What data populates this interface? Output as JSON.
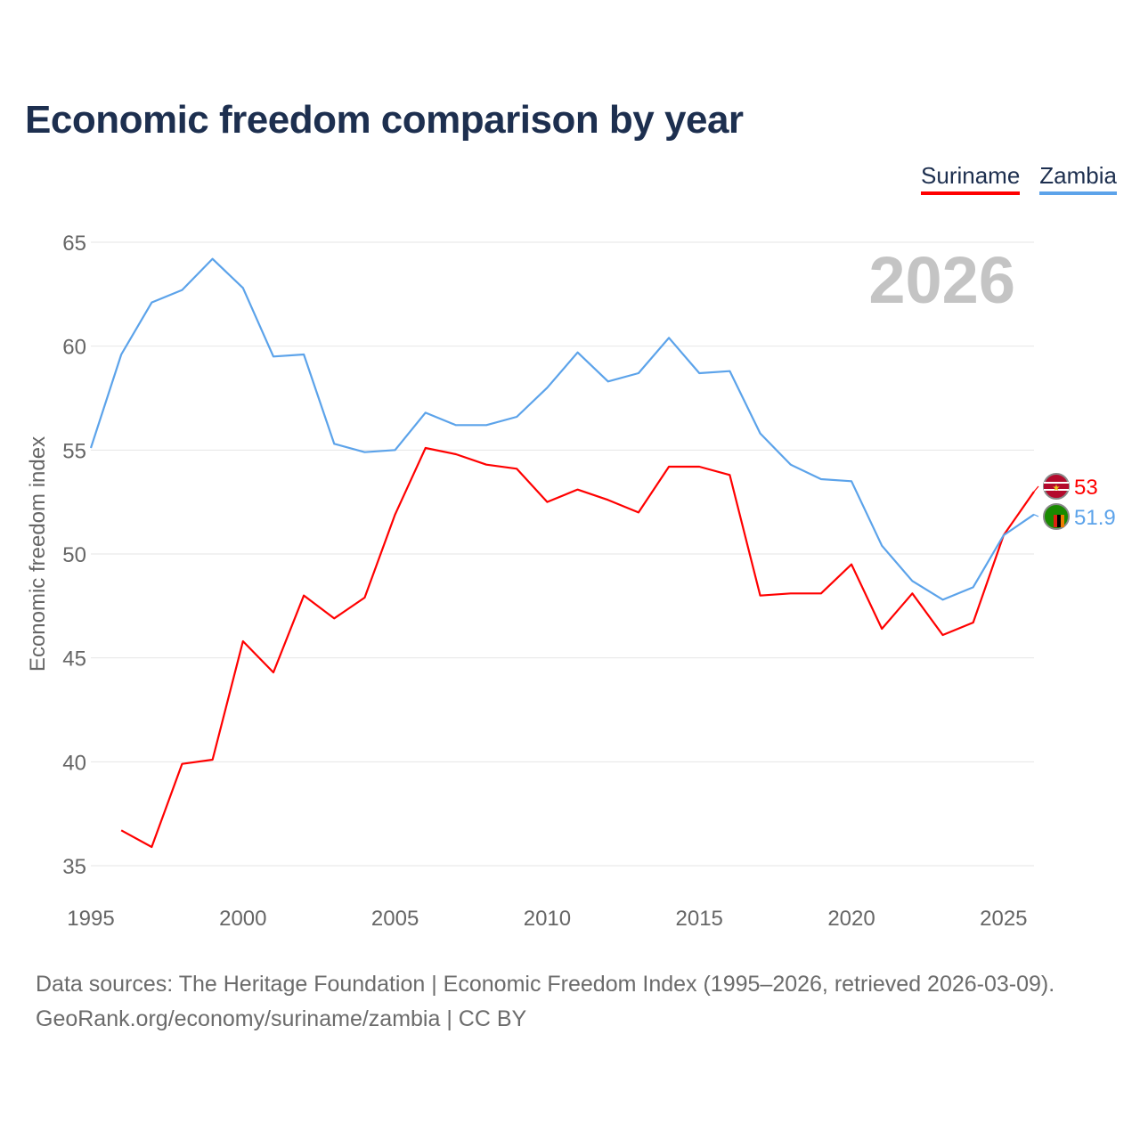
{
  "title": "Economic freedom comparison by year",
  "footer": {
    "line1": "Data sources: The Heritage Foundation | Economic Freedom Index (1995–2026, retrieved 2026-03-09).",
    "line2": "GeoRank.org/economy/suriname/zambia | CC BY"
  },
  "chart_data": {
    "type": "line",
    "title": "Economic freedom comparison by year",
    "xlabel": "",
    "ylabel": "Economic freedom index",
    "xlim": [
      1995,
      2026
    ],
    "ylim": [
      35,
      65
    ],
    "xticks": [
      "1995",
      "2000",
      "2005",
      "2010",
      "2015",
      "2020",
      "2025"
    ],
    "yticks": [
      "35",
      "40",
      "45",
      "50",
      "55",
      "60",
      "65"
    ],
    "grid": true,
    "legend_position": "top-right",
    "annotation": "2026",
    "series": [
      {
        "name": "Suriname",
        "color": "#ff0000",
        "end_label": "53",
        "x": [
          1996,
          1997,
          1998,
          1999,
          2000,
          2001,
          2002,
          2003,
          2004,
          2005,
          2006,
          2007,
          2008,
          2009,
          2010,
          2011,
          2012,
          2013,
          2014,
          2015,
          2016,
          2017,
          2018,
          2019,
          2020,
          2021,
          2022,
          2023,
          2024,
          2025,
          2026
        ],
        "values": [
          36.7,
          35.9,
          39.9,
          40.1,
          45.8,
          44.3,
          48.0,
          46.9,
          47.9,
          51.9,
          55.1,
          54.8,
          54.3,
          54.1,
          52.5,
          53.1,
          52.6,
          52.0,
          54.2,
          54.2,
          53.8,
          48.0,
          48.1,
          48.1,
          49.5,
          46.4,
          48.1,
          46.1,
          46.7,
          50.9,
          53.0
        ]
      },
      {
        "name": "Zambia",
        "color": "#5ca3ea",
        "end_label": "51.9",
        "x": [
          1995,
          1996,
          1997,
          1998,
          1999,
          2000,
          2001,
          2002,
          2003,
          2004,
          2005,
          2006,
          2007,
          2008,
          2009,
          2010,
          2011,
          2012,
          2013,
          2014,
          2015,
          2016,
          2017,
          2018,
          2019,
          2020,
          2021,
          2022,
          2023,
          2024,
          2025,
          2026
        ],
        "values": [
          55.1,
          59.6,
          62.1,
          62.7,
          64.2,
          62.8,
          59.5,
          59.6,
          55.3,
          54.9,
          55.0,
          56.8,
          56.2,
          56.2,
          56.6,
          58.0,
          59.7,
          58.3,
          58.7,
          60.4,
          58.7,
          58.8,
          55.8,
          54.3,
          53.6,
          53.5,
          50.4,
          48.7,
          47.8,
          48.4,
          50.9,
          51.9
        ]
      }
    ]
  }
}
